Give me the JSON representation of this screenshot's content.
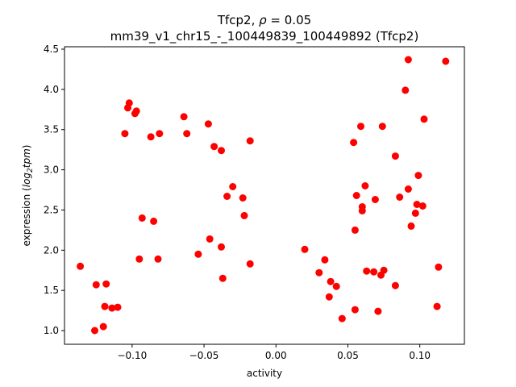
{
  "chart_data": {
    "type": "scatter",
    "title": {
      "line1_prefix": "Tfcp2, ",
      "line1_rho": "ρ",
      "line1_suffix": " = 0.05",
      "line2": "mm39_v1_chr15_-_100449839_100449892 (Tfcp2)"
    },
    "xlabel": "activity",
    "ylabel": {
      "prefix": "expression (",
      "log": "log",
      "sub": "2",
      "tpm": "tpm",
      "suffix": ")"
    },
    "xlim": [
      -0.147,
      0.131
    ],
    "ylim": [
      0.83,
      4.53
    ],
    "xticks": [
      {
        "value": -0.1,
        "label": "−0.10"
      },
      {
        "value": -0.05,
        "label": "−0.05"
      },
      {
        "value": 0.0,
        "label": "0.00"
      },
      {
        "value": 0.05,
        "label": "0.05"
      },
      {
        "value": 0.1,
        "label": "0.10"
      }
    ],
    "yticks": [
      {
        "value": 1.0,
        "label": "1.0"
      },
      {
        "value": 1.5,
        "label": "1.5"
      },
      {
        "value": 2.0,
        "label": "2.0"
      },
      {
        "value": 2.5,
        "label": "2.5"
      },
      {
        "value": 3.0,
        "label": "3.0"
      },
      {
        "value": 3.5,
        "label": "3.5"
      },
      {
        "value": 4.0,
        "label": "4.0"
      },
      {
        "value": 4.5,
        "label": "4.5"
      }
    ],
    "grid": false,
    "marker_color": "#ff0000",
    "points": [
      {
        "x": -0.136,
        "y": 1.8
      },
      {
        "x": -0.126,
        "y": 1.0
      },
      {
        "x": -0.125,
        "y": 1.57
      },
      {
        "x": -0.12,
        "y": 1.05
      },
      {
        "x": -0.119,
        "y": 1.3
      },
      {
        "x": -0.118,
        "y": 1.58
      },
      {
        "x": -0.114,
        "y": 1.28
      },
      {
        "x": -0.11,
        "y": 1.29
      },
      {
        "x": -0.105,
        "y": 3.45
      },
      {
        "x": -0.103,
        "y": 3.77
      },
      {
        "x": -0.102,
        "y": 3.83
      },
      {
        "x": -0.098,
        "y": 3.7
      },
      {
        "x": -0.097,
        "y": 3.73
      },
      {
        "x": -0.095,
        "y": 1.89
      },
      {
        "x": -0.093,
        "y": 2.4
      },
      {
        "x": -0.087,
        "y": 3.41
      },
      {
        "x": -0.085,
        "y": 2.36
      },
      {
        "x": -0.082,
        "y": 1.89
      },
      {
        "x": -0.081,
        "y": 3.45
      },
      {
        "x": -0.064,
        "y": 3.66
      },
      {
        "x": -0.062,
        "y": 3.45
      },
      {
        "x": -0.054,
        "y": 1.95
      },
      {
        "x": -0.047,
        "y": 3.57
      },
      {
        "x": -0.046,
        "y": 2.14
      },
      {
        "x": -0.043,
        "y": 3.29
      },
      {
        "x": -0.038,
        "y": 3.24
      },
      {
        "x": -0.038,
        "y": 2.04
      },
      {
        "x": -0.037,
        "y": 1.65
      },
      {
        "x": -0.034,
        "y": 2.67
      },
      {
        "x": -0.03,
        "y": 2.79
      },
      {
        "x": -0.023,
        "y": 2.65
      },
      {
        "x": -0.022,
        "y": 2.43
      },
      {
        "x": -0.018,
        "y": 3.36
      },
      {
        "x": -0.018,
        "y": 1.83
      },
      {
        "x": 0.02,
        "y": 2.01
      },
      {
        "x": 0.03,
        "y": 1.72
      },
      {
        "x": 0.034,
        "y": 1.88
      },
      {
        "x": 0.037,
        "y": 1.42
      },
      {
        "x": 0.038,
        "y": 1.61
      },
      {
        "x": 0.042,
        "y": 1.55
      },
      {
        "x": 0.046,
        "y": 1.15
      },
      {
        "x": 0.054,
        "y": 3.34
      },
      {
        "x": 0.055,
        "y": 2.25
      },
      {
        "x": 0.055,
        "y": 1.26
      },
      {
        "x": 0.056,
        "y": 2.68
      },
      {
        "x": 0.059,
        "y": 3.54
      },
      {
        "x": 0.06,
        "y": 2.54
      },
      {
        "x": 0.06,
        "y": 2.49
      },
      {
        "x": 0.062,
        "y": 2.8
      },
      {
        "x": 0.063,
        "y": 1.74
      },
      {
        "x": 0.068,
        "y": 1.73
      },
      {
        "x": 0.069,
        "y": 2.63
      },
      {
        "x": 0.071,
        "y": 1.24
      },
      {
        "x": 0.073,
        "y": 1.69
      },
      {
        "x": 0.074,
        "y": 3.54
      },
      {
        "x": 0.075,
        "y": 1.75
      },
      {
        "x": 0.083,
        "y": 3.17
      },
      {
        "x": 0.083,
        "y": 1.56
      },
      {
        "x": 0.086,
        "y": 2.66
      },
      {
        "x": 0.09,
        "y": 3.99
      },
      {
        "x": 0.092,
        "y": 2.76
      },
      {
        "x": 0.092,
        "y": 4.37
      },
      {
        "x": 0.094,
        "y": 2.3
      },
      {
        "x": 0.097,
        "y": 2.46
      },
      {
        "x": 0.098,
        "y": 2.57
      },
      {
        "x": 0.099,
        "y": 2.93
      },
      {
        "x": 0.102,
        "y": 2.55
      },
      {
        "x": 0.103,
        "y": 3.63
      },
      {
        "x": 0.112,
        "y": 1.3
      },
      {
        "x": 0.113,
        "y": 1.79
      },
      {
        "x": 0.118,
        "y": 4.35
      }
    ]
  }
}
